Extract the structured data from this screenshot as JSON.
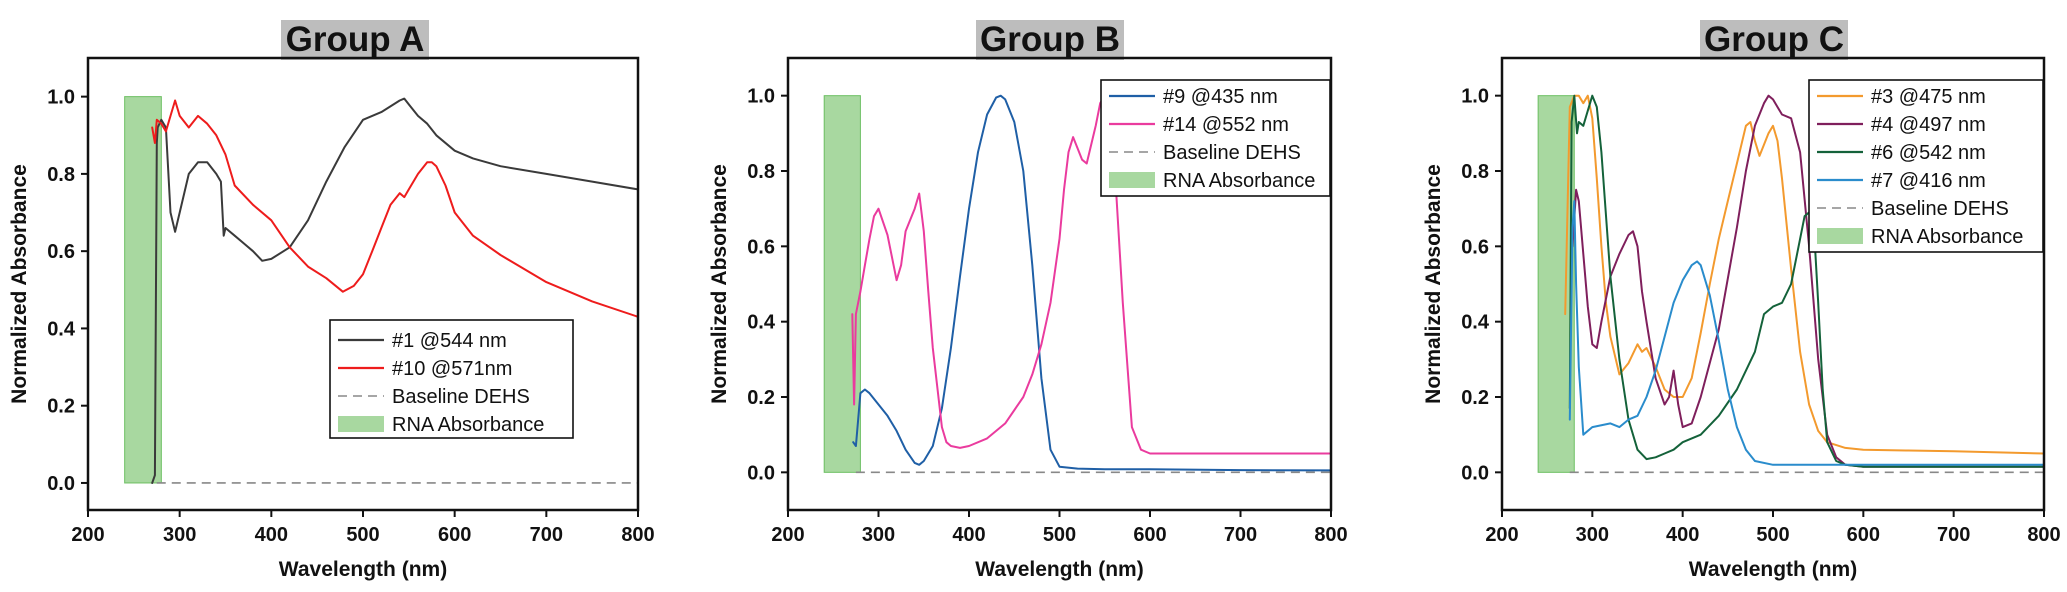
{
  "chart_data": [
    {
      "type": "line",
      "title": "Group A",
      "xlabel": "Wavelength (nm)",
      "ylabel": "Normalized Absorbance",
      "xlim": [
        200,
        800
      ],
      "ylim": [
        -0.07,
        1.1
      ],
      "xticks": [
        200,
        300,
        400,
        500,
        600,
        700,
        800
      ],
      "yticks": [
        "0.0",
        "0.2",
        "0.4",
        "0.6",
        "0.8",
        "1.0"
      ],
      "legend_position": "bottom-right",
      "rna_band": {
        "label": "RNA Absorbance",
        "x": [
          240,
          280
        ],
        "y": [
          0,
          1.0
        ],
        "color": "#a8d8a0"
      },
      "baseline": {
        "label": "Baseline DEHS",
        "x": [
          275,
          800
        ],
        "y": 0.0,
        "color": "#888888"
      },
      "series": [
        {
          "name": "#1 @544 nm",
          "color": "#3a3a3a",
          "x": [
            270,
            273,
            275,
            276,
            280,
            285,
            290,
            295,
            300,
            310,
            320,
            330,
            340,
            345,
            348,
            350,
            360,
            370,
            380,
            390,
            400,
            420,
            440,
            460,
            480,
            500,
            520,
            540,
            545,
            550,
            560,
            570,
            580,
            600,
            620,
            650,
            700,
            750,
            800
          ],
          "y": [
            0.0,
            0.02,
            0.88,
            0.92,
            0.94,
            0.92,
            0.7,
            0.65,
            0.7,
            0.8,
            0.83,
            0.83,
            0.8,
            0.78,
            0.64,
            0.66,
            0.64,
            0.62,
            0.6,
            0.575,
            0.58,
            0.61,
            0.68,
            0.78,
            0.87,
            0.94,
            0.96,
            0.99,
            0.995,
            0.98,
            0.95,
            0.93,
            0.9,
            0.86,
            0.84,
            0.82,
            0.8,
            0.78,
            0.76
          ]
        },
        {
          "name": "#10 @571nm",
          "color": "#ee1c1c",
          "x": [
            270,
            273,
            275,
            280,
            285,
            290,
            295,
            300,
            310,
            320,
            330,
            340,
            350,
            360,
            380,
            400,
            420,
            440,
            460,
            478,
            490,
            500,
            510,
            520,
            530,
            540,
            545,
            550,
            560,
            570,
            575,
            580,
            590,
            600,
            620,
            650,
            700,
            750,
            800
          ],
          "y": [
            0.92,
            0.88,
            0.94,
            0.93,
            0.91,
            0.95,
            0.99,
            0.95,
            0.92,
            0.95,
            0.93,
            0.9,
            0.85,
            0.77,
            0.72,
            0.68,
            0.61,
            0.56,
            0.53,
            0.495,
            0.51,
            0.54,
            0.6,
            0.66,
            0.72,
            0.75,
            0.74,
            0.76,
            0.8,
            0.83,
            0.83,
            0.82,
            0.77,
            0.7,
            0.64,
            0.59,
            0.52,
            0.47,
            0.43
          ]
        }
      ]
    },
    {
      "type": "line",
      "title": "Group B",
      "xlabel": "Wavelength (nm)",
      "ylabel": "Normalized Absorbance",
      "xlim": [
        200,
        800
      ],
      "ylim": [
        -0.1,
        1.1
      ],
      "xticks": [
        200,
        300,
        400,
        500,
        600,
        700,
        800
      ],
      "yticks": [
        "0.0",
        "0.2",
        "0.4",
        "0.6",
        "0.8",
        "1.0"
      ],
      "legend_position": "top-right",
      "rna_band": {
        "label": "RNA Absorbance",
        "x": [
          240,
          280
        ],
        "y": [
          0,
          1.0
        ],
        "color": "#a8d8a0"
      },
      "baseline": {
        "label": "Baseline DEHS",
        "x": [
          275,
          800
        ],
        "y": 0.0,
        "color": "#888888"
      },
      "series": [
        {
          "name": "#9 @435 nm",
          "color": "#1f5fa6",
          "x": [
            272,
            275,
            280,
            285,
            290,
            300,
            310,
            320,
            330,
            340,
            345,
            350,
            360,
            370,
            380,
            390,
            400,
            410,
            420,
            430,
            435,
            440,
            450,
            460,
            470,
            480,
            490,
            500,
            520,
            550,
            600,
            700,
            800
          ],
          "y": [
            0.08,
            0.07,
            0.21,
            0.22,
            0.21,
            0.18,
            0.15,
            0.11,
            0.06,
            0.025,
            0.02,
            0.03,
            0.07,
            0.17,
            0.33,
            0.52,
            0.7,
            0.85,
            0.95,
            0.995,
            1.0,
            0.99,
            0.93,
            0.8,
            0.55,
            0.25,
            0.06,
            0.015,
            0.01,
            0.008,
            0.008,
            0.006,
            0.005
          ]
        },
        {
          "name": "#14 @552 nm",
          "color": "#ea3b9e",
          "x": [
            271,
            273,
            275,
            280,
            285,
            290,
            295,
            300,
            310,
            320,
            325,
            330,
            340,
            345,
            350,
            355,
            360,
            370,
            375,
            380,
            390,
            400,
            420,
            440,
            460,
            470,
            480,
            490,
            500,
            505,
            510,
            515,
            520,
            525,
            530,
            540,
            545,
            550,
            555,
            560,
            570,
            580,
            590,
            600,
            700,
            800
          ],
          "y": [
            0.42,
            0.18,
            0.42,
            0.48,
            0.55,
            0.62,
            0.68,
            0.7,
            0.63,
            0.51,
            0.55,
            0.64,
            0.7,
            0.74,
            0.64,
            0.48,
            0.33,
            0.12,
            0.08,
            0.07,
            0.065,
            0.07,
            0.09,
            0.13,
            0.2,
            0.26,
            0.34,
            0.45,
            0.62,
            0.75,
            0.85,
            0.89,
            0.86,
            0.83,
            0.82,
            0.92,
            0.98,
            1.0,
            0.97,
            0.85,
            0.45,
            0.12,
            0.06,
            0.05,
            0.05,
            0.05
          ]
        }
      ]
    },
    {
      "type": "line",
      "title": "Group C",
      "xlabel": "Wavelength (nm)",
      "ylabel": "Normalized Absorbance",
      "xlim": [
        200,
        800
      ],
      "ylim": [
        -0.1,
        1.1
      ],
      "xticks": [
        200,
        300,
        400,
        500,
        600,
        700,
        800
      ],
      "yticks": [
        "0.0",
        "0.2",
        "0.4",
        "0.6",
        "0.8",
        "1.0"
      ],
      "legend_position": "top-right",
      "rna_band": {
        "label": "RNA Absorbance",
        "x": [
          240,
          280
        ],
        "y": [
          0,
          1.0
        ],
        "color": "#a8d8a0"
      },
      "baseline": {
        "label": "Baseline DEHS",
        "x": [
          275,
          800
        ],
        "y": 0.0,
        "color": "#888888"
      },
      "series": [
        {
          "name": "#3 @475 nm",
          "color": "#f39a2e",
          "x": [
            270,
            275,
            280,
            285,
            290,
            295,
            300,
            305,
            310,
            315,
            320,
            330,
            340,
            350,
            355,
            360,
            370,
            380,
            390,
            400,
            410,
            420,
            430,
            440,
            450,
            460,
            470,
            475,
            480,
            485,
            490,
            495,
            500,
            505,
            510,
            520,
            530,
            540,
            550,
            560,
            580,
            600,
            650,
            700,
            800
          ],
          "y": [
            0.42,
            0.97,
            1.0,
            1.0,
            0.98,
            1.0,
            0.94,
            0.78,
            0.6,
            0.45,
            0.36,
            0.26,
            0.29,
            0.34,
            0.32,
            0.33,
            0.28,
            0.22,
            0.2,
            0.2,
            0.25,
            0.37,
            0.5,
            0.62,
            0.72,
            0.82,
            0.92,
            0.93,
            0.88,
            0.84,
            0.87,
            0.9,
            0.92,
            0.88,
            0.78,
            0.54,
            0.32,
            0.18,
            0.11,
            0.08,
            0.065,
            0.06,
            0.058,
            0.056,
            0.05
          ]
        },
        {
          "name": "#4 @497 nm",
          "color": "#7f1f5c",
          "x": [
            278,
            282,
            285,
            290,
            295,
            300,
            305,
            310,
            320,
            330,
            340,
            345,
            350,
            355,
            360,
            370,
            380,
            385,
            390,
            395,
            400,
            410,
            420,
            440,
            460,
            470,
            480,
            490,
            495,
            500,
            505,
            510,
            520,
            530,
            540,
            550,
            560,
            570,
            580,
            600,
            700,
            800
          ],
          "y": [
            0.6,
            0.75,
            0.72,
            0.58,
            0.44,
            0.34,
            0.33,
            0.4,
            0.52,
            0.58,
            0.63,
            0.64,
            0.6,
            0.48,
            0.4,
            0.25,
            0.18,
            0.2,
            0.27,
            0.18,
            0.12,
            0.13,
            0.2,
            0.38,
            0.65,
            0.8,
            0.92,
            0.98,
            1.0,
            0.99,
            0.97,
            0.95,
            0.94,
            0.85,
            0.6,
            0.3,
            0.1,
            0.04,
            0.02,
            0.015,
            0.015,
            0.015
          ]
        },
        {
          "name": "#6 @542 nm",
          "color": "#14623a",
          "x": [
            275,
            277,
            280,
            283,
            285,
            290,
            295,
            300,
            305,
            310,
            320,
            330,
            340,
            350,
            360,
            370,
            380,
            390,
            400,
            420,
            440,
            460,
            480,
            490,
            500,
            510,
            520,
            530,
            535,
            540,
            545,
            550,
            555,
            560,
            570,
            580,
            600,
            700,
            800
          ],
          "y": [
            0.17,
            0.93,
            1.0,
            0.9,
            0.93,
            0.92,
            0.96,
            1.0,
            0.97,
            0.85,
            0.52,
            0.3,
            0.14,
            0.06,
            0.035,
            0.04,
            0.05,
            0.06,
            0.08,
            0.1,
            0.15,
            0.22,
            0.32,
            0.42,
            0.44,
            0.45,
            0.5,
            0.62,
            0.68,
            0.69,
            0.66,
            0.45,
            0.22,
            0.08,
            0.03,
            0.02,
            0.015,
            0.015,
            0.015
          ]
        },
        {
          "name": "#7 @416 nm",
          "color": "#2a8ccc",
          "x": [
            275,
            278,
            280,
            282,
            285,
            290,
            300,
            320,
            330,
            340,
            350,
            360,
            370,
            380,
            390,
            400,
            410,
            416,
            420,
            430,
            440,
            450,
            460,
            470,
            480,
            500,
            550,
            600,
            700,
            800
          ],
          "y": [
            0.14,
            0.65,
            0.72,
            0.5,
            0.28,
            0.1,
            0.12,
            0.13,
            0.12,
            0.14,
            0.15,
            0.2,
            0.27,
            0.36,
            0.45,
            0.51,
            0.55,
            0.56,
            0.55,
            0.47,
            0.35,
            0.22,
            0.12,
            0.06,
            0.03,
            0.02,
            0.02,
            0.02,
            0.02,
            0.02
          ]
        }
      ]
    }
  ]
}
